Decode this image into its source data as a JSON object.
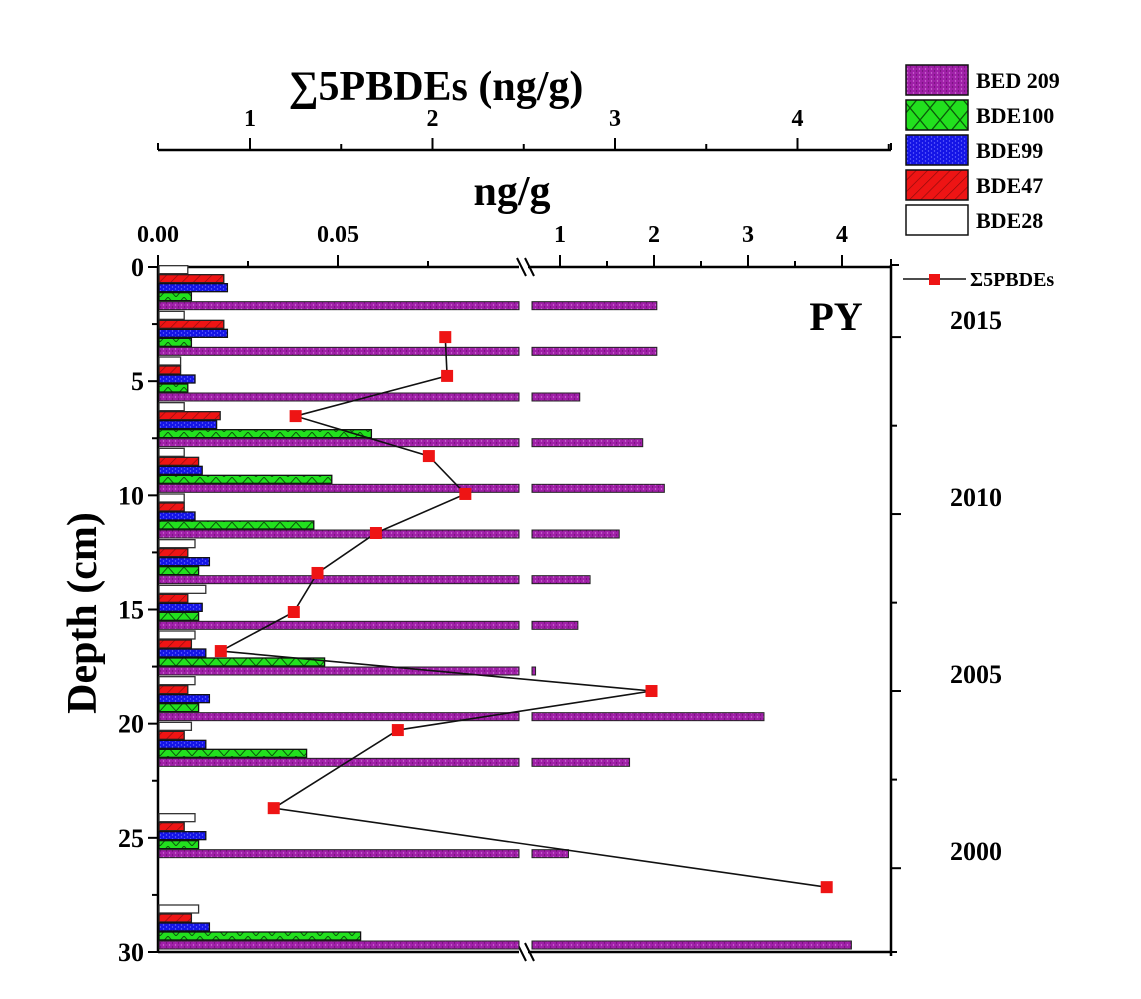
{
  "chart_data": {
    "type": "bar",
    "orientation": "horizontal",
    "panel_label": "PY",
    "top_axis": {
      "title": "∑5PBDEs (ng/g)",
      "ticks": [
        1,
        2,
        3,
        4
      ],
      "range": [
        0.5,
        4.5
      ]
    },
    "bottom_axis": {
      "title": "ng/g",
      "broken": true,
      "lower_segment": {
        "range": [
          0.0,
          0.1
        ],
        "tick_labels": [
          "0.00",
          "0.05"
        ],
        "ticks": [
          0.0,
          0.025,
          0.05,
          0.075
        ]
      },
      "upper_segment": {
        "range": [
          0.7,
          4.5
        ],
        "tick_labels": [
          "1",
          "2",
          "3",
          "4"
        ],
        "ticks": [
          1,
          1.5,
          2,
          2.5,
          3,
          3.5,
          4
        ]
      }
    },
    "left_axis": {
      "title": "Depth (cm)",
      "ticks": [
        0,
        5,
        10,
        15,
        20,
        25,
        30
      ],
      "range": [
        0,
        30
      ],
      "inverted": true
    },
    "right_axis": {
      "title": "",
      "year_labels": [
        {
          "label": "2015",
          "depth": 3.07
        },
        {
          "label": "2010",
          "depth": 10.82
        },
        {
          "label": "2005",
          "depth": 18.57
        },
        {
          "label": "2000",
          "depth": 26.33
        }
      ],
      "major_tick_depths": [
        3.07,
        10.82,
        18.57,
        26.33
      ],
      "minor_tick_depths": [
        6.95,
        14.7,
        22.45,
        30.0
      ]
    },
    "legend": {
      "placement": "top-right",
      "items": [
        {
          "name": "BED 209",
          "color": "#a020a8",
          "pattern": "dots"
        },
        {
          "name": "BDE100",
          "color": "#22e01e",
          "pattern": "crosshatch"
        },
        {
          "name": "BDE99",
          "color": "#1414e6",
          "pattern": "dots"
        },
        {
          "name": "BDE47",
          "color": "#ee1414",
          "pattern": "diagonal"
        },
        {
          "name": "BDE28",
          "color": "#ffffff",
          "pattern": "none"
        }
      ],
      "line_item": {
        "name": "Σ5PBDEs",
        "color": "#ee1414",
        "marker": "square"
      }
    },
    "depth_groups": [
      2,
      4,
      6,
      8,
      10,
      12,
      14,
      16,
      18,
      20,
      22,
      26,
      30
    ],
    "series": [
      {
        "name": "BDE28",
        "values": [
          0.008,
          0.007,
          0.006,
          0.007,
          0.007,
          0.007,
          0.01,
          0.013,
          0.01,
          0.01,
          0.009,
          0.01,
          0.011
        ]
      },
      {
        "name": "BDE47",
        "values": [
          0.018,
          0.018,
          0.006,
          0.017,
          0.011,
          0.007,
          0.008,
          0.008,
          0.009,
          0.008,
          0.007,
          0.007,
          0.009
        ]
      },
      {
        "name": "BDE99",
        "values": [
          0.019,
          0.019,
          0.01,
          0.016,
          0.012,
          0.01,
          0.014,
          0.012,
          0.013,
          0.014,
          0.013,
          0.013,
          0.014
        ]
      },
      {
        "name": "BDE100",
        "values": [
          0.009,
          0.009,
          0.008,
          0.059,
          0.048,
          0.043,
          0.011,
          0.011,
          0.046,
          0.011,
          0.041,
          0.011,
          0.056
        ]
      },
      {
        "name": "BED 209",
        "values": [
          2.03,
          2.03,
          1.21,
          1.88,
          2.11,
          1.63,
          1.32,
          1.19,
          0.74,
          3.17,
          1.74,
          1.09,
          4.1
        ]
      }
    ],
    "line_series": {
      "name": "Σ5PBDEs",
      "axis": "top",
      "points": [
        {
          "depth": 3.07,
          "value": 2.07
        },
        {
          "depth": 4.77,
          "value": 2.08
        },
        {
          "depth": 6.53,
          "value": 1.25
        },
        {
          "depth": 8.28,
          "value": 1.98
        },
        {
          "depth": 9.94,
          "value": 2.18
        },
        {
          "depth": 11.65,
          "value": 1.69
        },
        {
          "depth": 13.4,
          "value": 1.37
        },
        {
          "depth": 15.11,
          "value": 1.24
        },
        {
          "depth": 16.82,
          "value": 0.84
        },
        {
          "depth": 18.57,
          "value": 3.2
        },
        {
          "depth": 20.28,
          "value": 1.81
        },
        {
          "depth": 23.7,
          "value": 1.13
        },
        {
          "depth": 27.16,
          "value": 4.16
        }
      ]
    }
  }
}
